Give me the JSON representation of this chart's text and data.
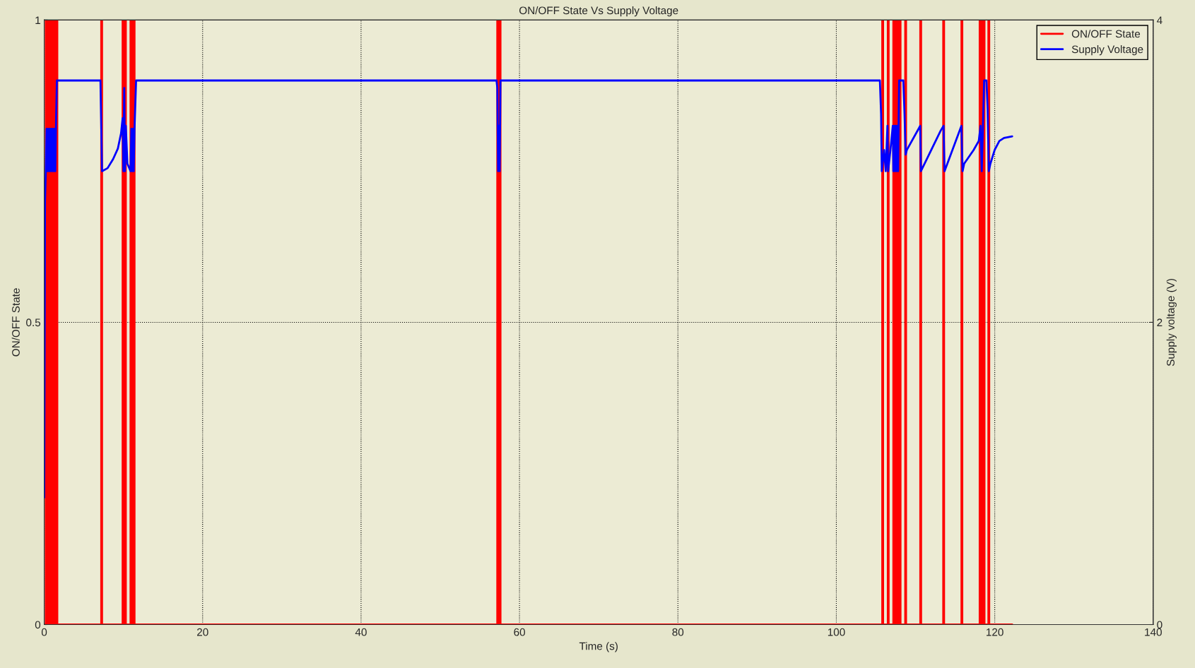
{
  "chart_data": {
    "type": "line",
    "title": "ON/OFF State Vs Supply Voltage",
    "xlabel": "Time (s)",
    "ylabel": "ON/OFF State",
    "y2label": "Supply voltage (V)",
    "xlim": [
      0,
      140
    ],
    "xticks": [
      0,
      20,
      40,
      60,
      80,
      100,
      120,
      140
    ],
    "ylim": [
      0,
      1
    ],
    "yticks": [
      0,
      0.5,
      1
    ],
    "y2lim": [
      0,
      4
    ],
    "y2ticks": [
      0,
      2,
      4
    ],
    "grid": true,
    "legend": "top right",
    "line_style": "solid",
    "marker": "none",
    "series": [
      {
        "name": "ON/OFF State",
        "color": "#ff0000",
        "x": [
          0,
          0.2,
          0.2,
          0.3,
          0.3,
          0.4,
          0.4,
          0.5,
          0.5,
          0.6,
          0.6,
          0.7,
          0.7,
          0.8,
          0.8,
          0.9,
          0.9,
          1.0,
          1.0,
          1.1,
          1.1,
          1.2,
          1.2,
          1.3,
          1.3,
          1.4,
          1.4,
          1.5,
          1.5,
          1.55,
          1.55,
          1.65,
          1.65,
          7.2,
          7.2,
          7.3,
          7.3,
          9.9,
          9.9,
          10.0,
          10.0,
          10.1,
          10.1,
          10.2,
          10.2,
          10.25,
          10.25,
          10.3,
          10.3,
          10.9,
          10.9,
          11.0,
          11.0,
          11.1,
          11.1,
          11.2,
          11.2,
          11.3,
          11.3,
          11.4,
          11.4,
          57.2,
          57.2,
          57.3,
          57.3,
          57.4,
          57.4,
          57.5,
          57.5,
          57.55,
          57.55,
          57.6,
          57.6,
          105.8,
          105.8,
          105.9,
          105.9,
          106.5,
          106.5,
          106.6,
          106.6,
          107.2,
          107.2,
          107.3,
          107.3,
          107.4,
          107.4,
          107.5,
          107.5,
          107.6,
          107.6,
          107.7,
          107.7,
          107.8,
          107.8,
          107.9,
          107.9,
          108.0,
          108.0,
          108.1,
          108.1,
          108.7,
          108.7,
          108.8,
          108.8,
          110.6,
          110.6,
          110.7,
          110.7,
          113.5,
          113.5,
          113.6,
          113.6,
          115.8,
          115.8,
          115.9,
          115.9,
          118.1,
          118.1,
          118.2,
          118.2,
          118.3,
          118.3,
          118.4,
          118.4,
          118.5,
          118.5,
          118.6,
          118.6,
          118.65,
          118.65,
          118.7,
          118.7,
          119.2,
          119.2,
          119.3,
          119.3,
          122.2
        ],
        "values": [
          0,
          0,
          1,
          1,
          0,
          0,
          1,
          1,
          0,
          0,
          1,
          1,
          0,
          0,
          1,
          1,
          0,
          0,
          1,
          1,
          0,
          0,
          1,
          1,
          0,
          0,
          1,
          1,
          0,
          0,
          1,
          1,
          0,
          0,
          1,
          1,
          0,
          0,
          1,
          1,
          0,
          0,
          1,
          1,
          0,
          0,
          1,
          1,
          0,
          0,
          1,
          1,
          0,
          0,
          1,
          1,
          0,
          0,
          1,
          1,
          0,
          0,
          1,
          1,
          0,
          0,
          1,
          1,
          0,
          0,
          1,
          1,
          0,
          0,
          1,
          1,
          0,
          0,
          1,
          1,
          0,
          0,
          1,
          1,
          0,
          0,
          1,
          1,
          0,
          0,
          1,
          1,
          0,
          0,
          1,
          1,
          0,
          0,
          1,
          1,
          0,
          0,
          1,
          1,
          0,
          0,
          1,
          1,
          0,
          0,
          1,
          1,
          0,
          0,
          1,
          1,
          0,
          0,
          1,
          1,
          0,
          0,
          1,
          1,
          0,
          0,
          1,
          1,
          0,
          0,
          1,
          1,
          0,
          0,
          1,
          1,
          0,
          0
        ]
      },
      {
        "name": "Supply Voltage",
        "color": "#0000ff",
        "axis": "y2",
        "x": [
          0,
          0.1,
          0.2,
          0.3,
          0.4,
          0.5,
          0.6,
          0.7,
          0.8,
          0.9,
          1.0,
          1.1,
          1.2,
          1.3,
          1.4,
          1.5,
          1.6,
          7.1,
          7.3,
          8.0,
          8.7,
          9.3,
          9.7,
          9.9,
          10.0,
          10.1,
          10.2,
          10.3,
          10.5,
          10.9,
          11.0,
          11.1,
          11.2,
          11.3,
          11.4,
          11.6,
          57.1,
          57.2,
          57.3,
          57.4,
          57.5,
          57.6,
          105.5,
          105.65,
          105.74,
          106.03,
          106.24,
          106.45,
          106.54,
          106.83,
          107.13,
          107.2,
          107.3,
          107.4,
          107.5,
          107.6,
          107.7,
          107.8,
          107.93,
          108.46,
          108.61,
          108.75,
          108.9,
          110.59,
          110.68,
          113.19,
          113.54,
          113.66,
          115.79,
          115.94,
          116.14,
          117.33,
          117.98,
          118.21,
          118.36,
          118.51,
          118.66,
          118.95,
          119.1,
          119.25,
          119.45,
          119.99,
          120.58,
          121.17,
          122.2
        ],
        "values": [
          0.84,
          2.8,
          3.0,
          3.28,
          3.0,
          3.28,
          3.0,
          3.28,
          3.0,
          3.28,
          3.0,
          3.28,
          3.0,
          3.28,
          3.0,
          3.35,
          3.6,
          3.6,
          3.0,
          3.02,
          3.08,
          3.15,
          3.25,
          3.35,
          3.0,
          3.55,
          3.0,
          3.3,
          3.05,
          3.0,
          3.28,
          3.0,
          3.28,
          3.0,
          3.28,
          3.6,
          3.6,
          3.55,
          3.0,
          3.3,
          3.0,
          3.6,
          3.6,
          3.38,
          3.0,
          3.14,
          3.0,
          3.3,
          3.0,
          3.14,
          3.3,
          3.0,
          3.3,
          3.0,
          3.3,
          3.0,
          3.3,
          3.0,
          3.6,
          3.6,
          3.38,
          3.11,
          3.14,
          3.3,
          3.0,
          3.27,
          3.3,
          3.0,
          3.3,
          3.0,
          3.05,
          3.14,
          3.2,
          3.3,
          3.0,
          3.3,
          3.6,
          3.6,
          3.41,
          3.0,
          3.05,
          3.14,
          3.2,
          3.22,
          3.23
        ]
      }
    ]
  }
}
